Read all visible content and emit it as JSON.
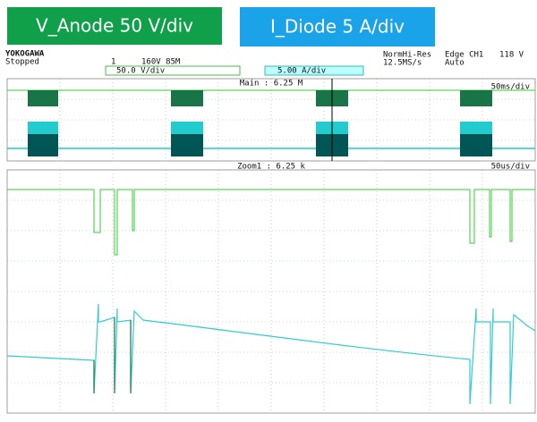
{
  "labels": {
    "voltage": "V_Anode 50 V/div",
    "current": "I_Diode 5 A/div"
  },
  "header": {
    "brand": "YOKOGAWA",
    "state": "Stopped",
    "channel": "1",
    "record": "160V 85M",
    "mode": "NormHi-Res",
    "rate": "12.5MS/s",
    "trigger": "Edge CH1",
    "level": "118 V",
    "trigger_mode": "Auto",
    "ch1_scale": "50.0 V/div",
    "ch3_scale": "5.00 A/div"
  },
  "main": {
    "label": "Main : 6.25 M",
    "timebase": "50ms/div"
  },
  "zoom": {
    "label": "Zoom1 : 6.25 k",
    "timebase": "50us/div"
  }
}
